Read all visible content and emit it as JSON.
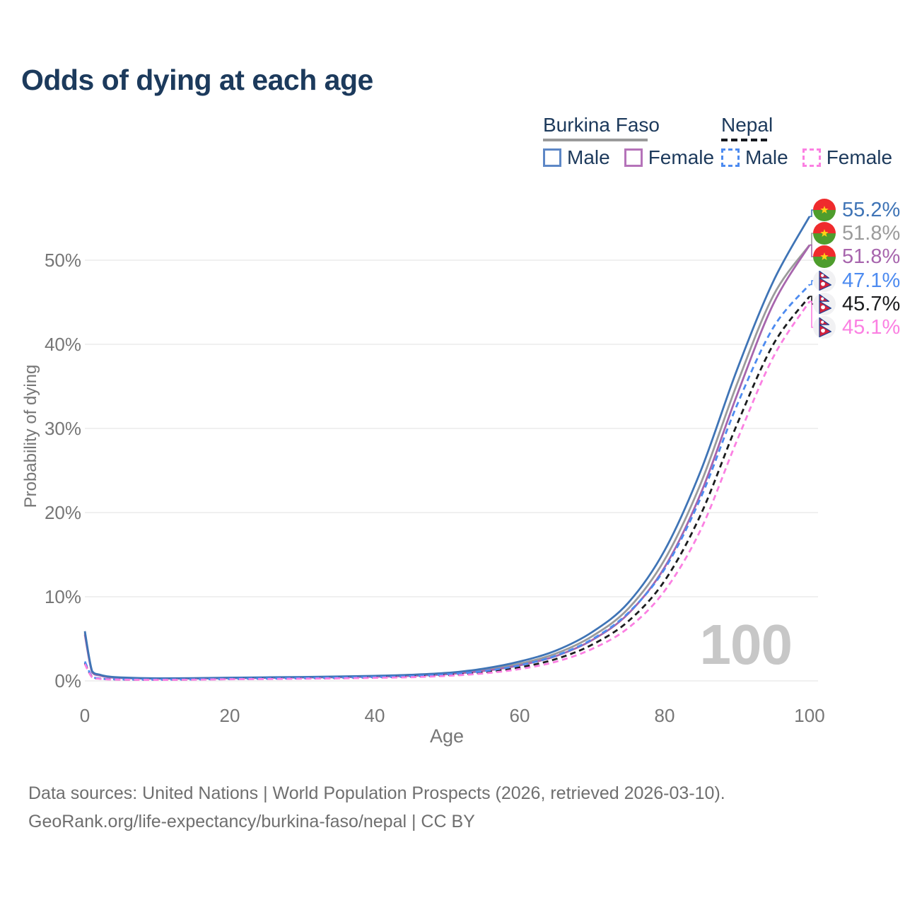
{
  "title": "Odds of dying at each age",
  "legend": {
    "groups": [
      {
        "name": "Burkina Faso",
        "style": "solid",
        "items": [
          {
            "label": "Male",
            "color": "#5d87c6"
          },
          {
            "label": "Female",
            "color": "#b573b9"
          }
        ]
      },
      {
        "name": "Nepal",
        "style": "dashed",
        "items": [
          {
            "label": "Male",
            "color": "#4d8bf0"
          },
          {
            "label": "Female",
            "color": "#fb80e2"
          }
        ]
      }
    ]
  },
  "watermark": "100",
  "footer": {
    "line1": "Data sources: United Nations | World Population Prospects (2026, retrieved 2026-03-10).",
    "line2": "GeoRank.org/life-expectancy/burkina-faso/nepal | CC BY"
  },
  "chart_data": {
    "type": "line",
    "title": "Odds of dying at each age",
    "xlabel": "Age",
    "ylabel": "Probability of dying",
    "xlim": [
      0,
      100
    ],
    "ylim": [
      0,
      50
    ],
    "grid": "horizontal",
    "legend_position": "top-right",
    "x_tick_values": [
      0,
      20,
      40,
      60,
      80,
      100
    ],
    "x_tick_labels": [
      "0",
      "20",
      "40",
      "60",
      "80",
      "100"
    ],
    "y_tick_values": [
      0,
      10,
      20,
      30,
      40,
      50
    ],
    "y_tick_labels": [
      "0%",
      "10%",
      "20%",
      "30%",
      "40%",
      "50%"
    ],
    "x": [
      0,
      1,
      2,
      3,
      5,
      10,
      15,
      20,
      25,
      30,
      35,
      40,
      45,
      50,
      55,
      60,
      65,
      70,
      75,
      80,
      85,
      90,
      95,
      100
    ],
    "series": [
      {
        "name": "Burkina Faso Male",
        "country": "Burkina Faso",
        "sex": "Male",
        "color": "#3f74b6",
        "dashed": false,
        "end_label": "55.2%",
        "end_value": 55.2,
        "values": [
          5.9,
          1.15,
          0.75,
          0.55,
          0.4,
          0.3,
          0.32,
          0.38,
          0.42,
          0.46,
          0.52,
          0.6,
          0.72,
          0.95,
          1.45,
          2.3,
          3.6,
          5.8,
          9.3,
          15.5,
          25.0,
          37.0,
          47.5,
          55.2
        ]
      },
      {
        "name": "Burkina Faso Both sexes",
        "country": "Burkina Faso",
        "sex": "Both",
        "color": "#9b9b9b",
        "dashed": false,
        "end_label": "51.8%",
        "end_value": 51.8,
        "values": [
          5.7,
          1.08,
          0.7,
          0.5,
          0.37,
          0.28,
          0.3,
          0.35,
          0.39,
          0.43,
          0.48,
          0.55,
          0.66,
          0.87,
          1.3,
          2.05,
          3.25,
          5.3,
          8.6,
          14.4,
          23.5,
          35.3,
          45.8,
          51.8
        ]
      },
      {
        "name": "Burkina Faso Female",
        "country": "Burkina Faso",
        "sex": "Female",
        "color": "#a765ad",
        "dashed": false,
        "end_label": "51.8%",
        "end_value": 51.8,
        "values": [
          5.5,
          1.0,
          0.65,
          0.47,
          0.34,
          0.26,
          0.28,
          0.32,
          0.36,
          0.4,
          0.44,
          0.5,
          0.6,
          0.8,
          1.18,
          1.85,
          2.95,
          4.85,
          8.0,
          13.5,
          22.3,
          34.0,
          44.8,
          51.8
        ]
      },
      {
        "name": "Nepal Male",
        "country": "Nepal",
        "sex": "Male",
        "color": "#4d8bf0",
        "dashed": true,
        "end_label": "47.1%",
        "end_value": 47.1,
        "values": [
          2.3,
          0.5,
          0.3,
          0.22,
          0.17,
          0.15,
          0.18,
          0.24,
          0.28,
          0.33,
          0.38,
          0.45,
          0.56,
          0.78,
          1.15,
          1.85,
          3.0,
          4.95,
          8.1,
          13.3,
          21.8,
          32.8,
          42.0,
          47.1
        ]
      },
      {
        "name": "Nepal Both sexes",
        "country": "Nepal",
        "sex": "Both",
        "color": "#1b1c1e",
        "dashed": true,
        "end_label": "45.7%",
        "end_value": 45.7,
        "values": [
          2.1,
          0.45,
          0.27,
          0.2,
          0.15,
          0.13,
          0.16,
          0.21,
          0.25,
          0.29,
          0.33,
          0.4,
          0.5,
          0.68,
          1.0,
          1.6,
          2.6,
          4.3,
          7.1,
          11.9,
          19.8,
          30.5,
          40.0,
          45.7
        ]
      },
      {
        "name": "Nepal Female",
        "country": "Nepal",
        "sex": "Female",
        "color": "#fb80e2",
        "dashed": true,
        "end_label": "45.1%",
        "end_value": 45.1,
        "values": [
          2.0,
          0.42,
          0.25,
          0.18,
          0.14,
          0.12,
          0.14,
          0.19,
          0.22,
          0.26,
          0.3,
          0.36,
          0.44,
          0.6,
          0.88,
          1.4,
          2.28,
          3.8,
          6.3,
          10.7,
          18.0,
          28.6,
          38.5,
          45.1
        ]
      }
    ],
    "flag_colors": {
      "burkina_red": "#ef2b2d",
      "burkina_green": "#4e9d2d",
      "burkina_star": "#fcd116",
      "nepal_crimson": "#d3223c",
      "nepal_blue": "#1b3f93",
      "nepal_bg": "#f1f1f3"
    }
  }
}
